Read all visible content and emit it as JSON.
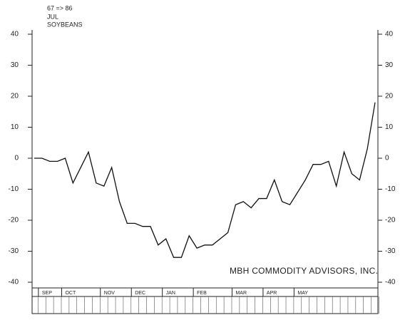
{
  "chart_data": {
    "type": "line",
    "header": [
      "67 => 86",
      "JUL",
      "SOYBEANS"
    ],
    "annotation": "MBH COMMODITY ADVISORS, INC.",
    "categories": [
      null,
      "SEP",
      null,
      null,
      "OCT",
      null,
      null,
      null,
      null,
      "NOV",
      null,
      null,
      null,
      "DEC",
      null,
      null,
      null,
      "JAN",
      null,
      null,
      null,
      "FEB",
      null,
      null,
      null,
      null,
      "MAR",
      null,
      null,
      null,
      "APR",
      null,
      null,
      null,
      "MAY",
      null,
      null,
      null,
      null,
      null,
      null,
      null,
      null,
      null,
      null
    ],
    "values": [
      0,
      0,
      -1,
      -1,
      0,
      -8,
      -3,
      2,
      -8,
      -9,
      -3,
      -14,
      -21,
      -21,
      -22,
      -22,
      -28,
      -26,
      -32,
      -32,
      -25,
      -29,
      -28,
      -28,
      -26,
      -24,
      -15,
      -14,
      -16,
      -13,
      -13,
      -7,
      -14,
      -15,
      -11,
      -7,
      -2,
      -2,
      -1,
      -9,
      2,
      -5,
      -7,
      3,
      18
    ],
    "color": "#111111",
    "ylim": [
      -40,
      40
    ],
    "yticks": [
      -40,
      -30,
      -20,
      -10,
      0,
      10,
      20,
      30,
      40
    ]
  }
}
